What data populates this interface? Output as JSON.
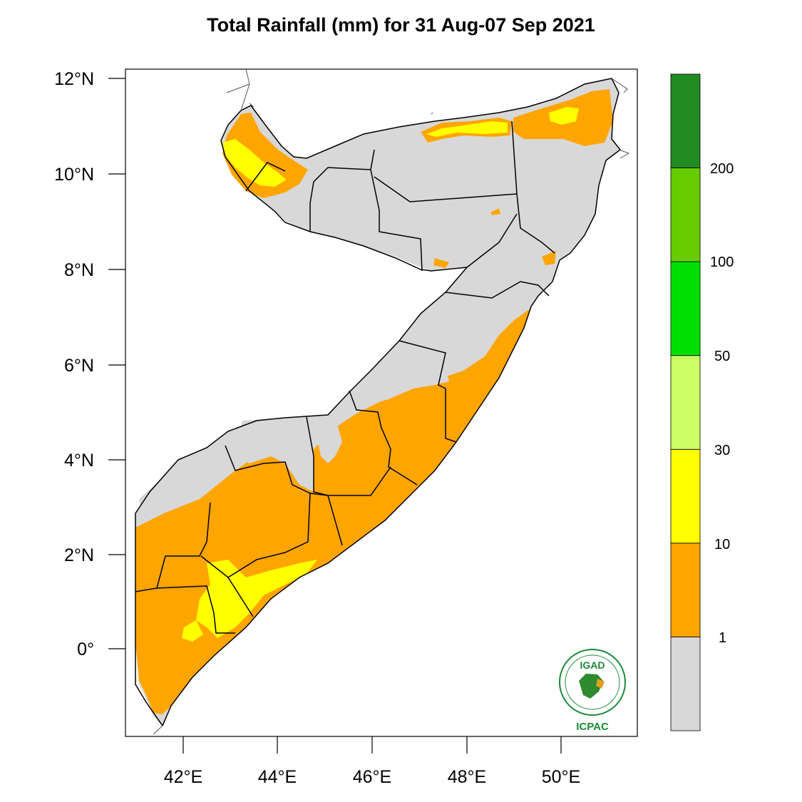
{
  "title": "Total Rainfall (mm) for 31 Aug-07 Sep 2021",
  "axes": {
    "lat_ticks": [
      "12°N",
      "10°N",
      "8°N",
      "6°N",
      "4°N",
      "2°N",
      "0°"
    ],
    "lon_ticks": [
      "42°E",
      "44°E",
      "46°E",
      "48°E",
      "50°E"
    ]
  },
  "colorbar": {
    "levels": [
      "1",
      "10",
      "30",
      "50",
      "100",
      "200"
    ],
    "colors": [
      "#d8d8d8",
      "#ffa500",
      "#ffff00",
      "#ccff66",
      "#00e000",
      "#66cc00",
      "#228b22"
    ]
  },
  "land_colors": {
    "dry": "#d8d8d8",
    "orange": "#ffa500",
    "yellow": "#ffff00"
  },
  "logo": {
    "name": "IGAD",
    "sub": "ICPAC",
    "icon": "igad-emblem-icon"
  }
}
